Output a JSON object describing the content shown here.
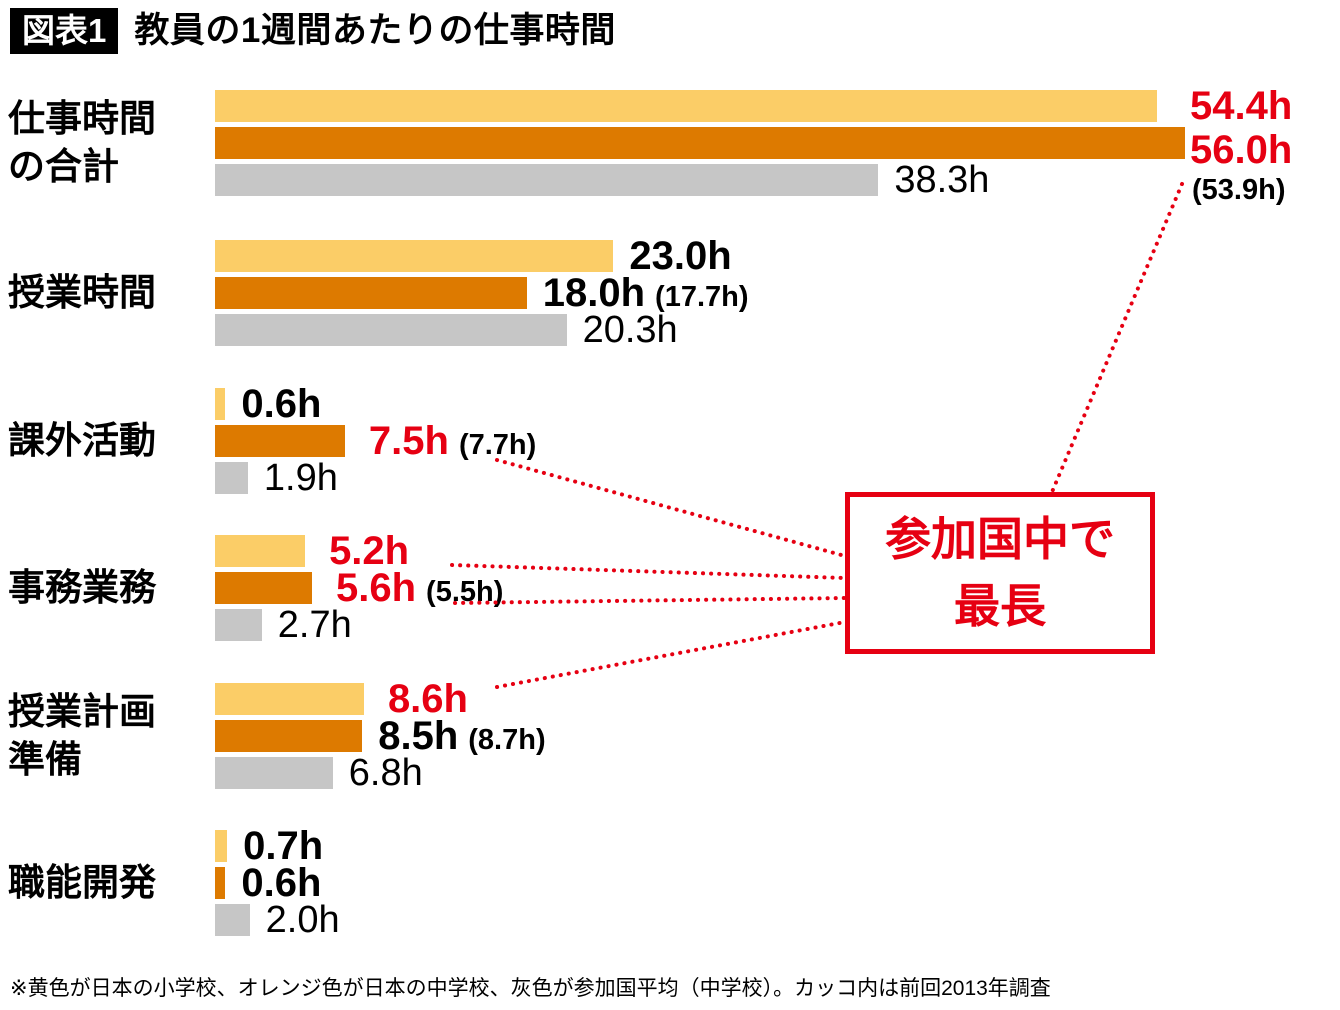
{
  "header": {
    "badge": "図表1",
    "title": "教員の1週間あたりの仕事時間"
  },
  "footnote": "※黄色が日本の小学校、オレンジ色が日本の中学校、灰色が参加国平均（中学校）。カッコ内は前回2013年調査",
  "callout": {
    "line1": "参加国中で",
    "line2": "最長"
  },
  "colors": {
    "elementary": "#FBCD67",
    "junior_high": "#DD7A00",
    "average": "#C6C6C6",
    "highlight": "#E60012",
    "text": "#000000"
  },
  "chart_data": {
    "type": "bar",
    "orientation": "horizontal",
    "title": "教員の1週間あたりの仕事時間",
    "unit": "hours per week",
    "value_suffix": "h",
    "note": "カッコ内は前回2013年調査",
    "legend_position": "footnote",
    "xlim": [
      0,
      60
    ],
    "series": [
      {
        "key": "elementary",
        "name": "日本の小学校",
        "color": "#FBCD67"
      },
      {
        "key": "junior_high",
        "name": "日本の中学校",
        "color": "#DD7A00"
      },
      {
        "key": "average",
        "name": "参加国平均（中学校）",
        "color": "#C6C6C6"
      }
    ],
    "categories": [
      {
        "label": "仕事時間の合計",
        "label_lines": [
          "仕事時間",
          "の合計"
        ],
        "bars": [
          {
            "value": 54.4,
            "text": "54.4h",
            "highlight": true
          },
          {
            "value": 56.0,
            "text": "56.0h",
            "prev": "(53.9h)",
            "prev_value": 53.9,
            "highlight": true
          },
          {
            "value": 38.3,
            "text": "38.3h"
          }
        ]
      },
      {
        "label": "授業時間",
        "label_lines": [
          "授業時間"
        ],
        "bars": [
          {
            "value": 23.0,
            "text": "23.0h"
          },
          {
            "value": 18.0,
            "text": "18.0h",
            "prev": "(17.7h)",
            "prev_value": 17.7
          },
          {
            "value": 20.3,
            "text": "20.3h"
          }
        ]
      },
      {
        "label": "課外活動",
        "label_lines": [
          "課外活動"
        ],
        "bars": [
          {
            "value": 0.6,
            "text": "0.6h"
          },
          {
            "value": 7.5,
            "text": "7.5h",
            "prev": "(7.7h)",
            "prev_value": 7.7,
            "highlight": true
          },
          {
            "value": 1.9,
            "text": "1.9h"
          }
        ]
      },
      {
        "label": "事務業務",
        "label_lines": [
          "事務業務"
        ],
        "bars": [
          {
            "value": 5.2,
            "text": "5.2h",
            "highlight": true
          },
          {
            "value": 5.6,
            "text": "5.6h",
            "prev": "(5.5h)",
            "prev_value": 5.5,
            "highlight": true
          },
          {
            "value": 2.7,
            "text": "2.7h"
          }
        ]
      },
      {
        "label": "授業計画準備",
        "label_lines": [
          "授業計画",
          "準備"
        ],
        "bars": [
          {
            "value": 8.6,
            "text": "8.6h",
            "highlight": true
          },
          {
            "value": 8.5,
            "text": "8.5h",
            "prev": "(8.7h)",
            "prev_value": 8.7
          },
          {
            "value": 6.8,
            "text": "6.8h"
          }
        ]
      },
      {
        "label": "職能開発",
        "label_lines": [
          "職能開発"
        ],
        "bars": [
          {
            "value": 0.7,
            "text": "0.7h"
          },
          {
            "value": 0.6,
            "text": "0.6h"
          },
          {
            "value": 2.0,
            "text": "2.0h"
          }
        ]
      }
    ]
  }
}
